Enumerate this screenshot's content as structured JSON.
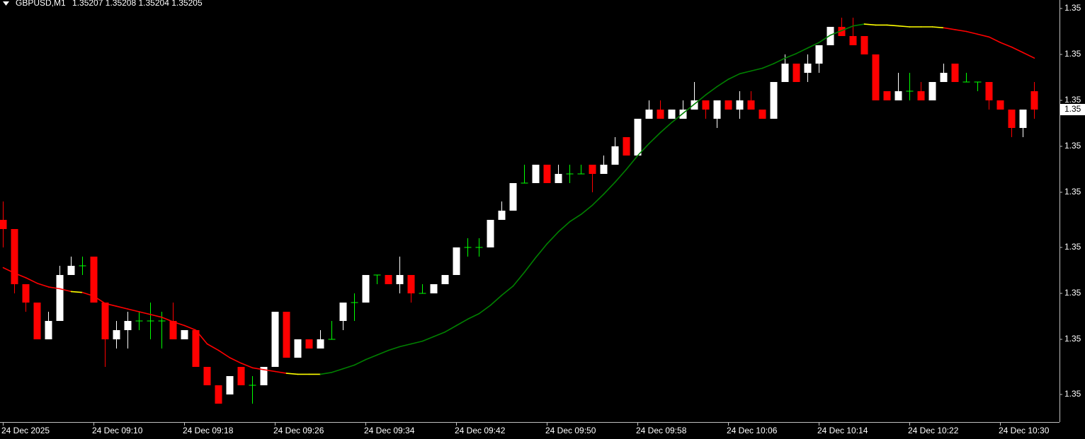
{
  "chart_data": {
    "type": "candlestick",
    "symbol": "GBPUSD,M1",
    "categories": [
      "24 Dec 2025",
      null,
      null,
      null,
      null,
      null,
      null,
      null,
      "24 Dec 09:10",
      null,
      null,
      null,
      null,
      null,
      null,
      null,
      "24 Dec 09:18",
      null,
      null,
      null,
      null,
      null,
      null,
      null,
      "24 Dec 09:26",
      null,
      null,
      null,
      null,
      null,
      null,
      null,
      "24 Dec 09:34",
      null,
      null,
      null,
      null,
      null,
      null,
      null,
      "24 Dec 09:42",
      null,
      null,
      null,
      null,
      null,
      null,
      null,
      "24 Dec 09:50",
      null,
      null,
      null,
      null,
      null,
      null,
      null,
      "24 Dec 09:58",
      null,
      null,
      null,
      null,
      null,
      null,
      null,
      "24 Dec 10:06",
      null,
      null,
      null,
      null,
      null,
      null,
      null,
      "24 Dec 10:14",
      null,
      null,
      null,
      null,
      null,
      null,
      null,
      "24 Dec 10:22",
      null,
      null,
      null,
      null,
      null,
      null,
      null,
      "24 Dec 10:30",
      null,
      null,
      null
    ],
    "open": [
      1.35193,
      1.35192,
      1.35186,
      1.35184,
      1.3518,
      1.35182,
      1.35187,
      1.35188,
      1.35189,
      1.35184,
      1.3518,
      1.35181,
      1.35182,
      1.35182,
      1.35182,
      1.35182,
      1.3518,
      1.35181,
      1.35177,
      1.35175,
      1.35174,
      1.35177,
      1.35175,
      1.35175,
      1.35177,
      1.35183,
      1.35178,
      1.3518,
      1.35179,
      1.3518,
      1.35182,
      1.35184,
      1.35184,
      1.35187,
      1.35187,
      1.35186,
      1.35187,
      1.35185,
      1.35185,
      1.35186,
      1.35187,
      1.3519,
      1.3519,
      1.3519,
      1.35193,
      1.35194,
      1.35197,
      1.35197,
      1.35199,
      1.35197,
      1.35198,
      1.35198,
      1.35199,
      1.35198,
      1.35199,
      1.35202,
      1.352,
      1.35204,
      1.35205,
      1.35204,
      1.35204,
      1.35205,
      1.35206,
      1.35204,
      1.35206,
      1.35205,
      1.35206,
      1.35205,
      1.35204,
      1.35208,
      1.3521,
      1.35209,
      1.3521,
      1.35212,
      1.35214,
      1.35213,
      1.35213,
      1.35211,
      1.35207,
      1.35206,
      1.35207,
      1.35207,
      1.35206,
      1.35208,
      1.3521,
      1.35208,
      1.35208,
      1.35208,
      1.35206,
      1.35205,
      1.35203,
      1.35207
    ],
    "high": [
      1.35195,
      1.35192,
      1.35186,
      1.35184,
      1.35183,
      1.35188,
      1.35189,
      1.35189,
      1.35189,
      1.35184,
      1.35182,
      1.35183,
      1.35183,
      1.35184,
      1.35183,
      1.35184,
      1.35181,
      1.35181,
      1.35177,
      1.35175,
      1.35176,
      1.35177,
      1.35176,
      1.35177,
      1.35183,
      1.35183,
      1.3518,
      1.3518,
      1.35181,
      1.35182,
      1.35184,
      1.35185,
      1.35187,
      1.35187,
      1.35187,
      1.35189,
      1.35187,
      1.35186,
      1.35186,
      1.35187,
      1.3519,
      1.35191,
      1.35191,
      1.35193,
      1.35195,
      1.35197,
      1.35199,
      1.35199,
      1.35199,
      1.35199,
      1.35199,
      1.35199,
      1.35199,
      1.352,
      1.35202,
      1.35202,
      1.35204,
      1.35206,
      1.35206,
      1.35205,
      1.35206,
      1.35208,
      1.35206,
      1.35206,
      1.35206,
      1.35207,
      1.35207,
      1.35205,
      1.35208,
      1.35211,
      1.3521,
      1.35211,
      1.35212,
      1.35214,
      1.35215,
      1.35215,
      1.35213,
      1.35211,
      1.35207,
      1.35209,
      1.35209,
      1.35208,
      1.35208,
      1.3521,
      1.3521,
      1.35209,
      1.35208,
      1.35208,
      1.35206,
      1.35205,
      1.35205,
      1.35208
    ],
    "low": [
      1.3519,
      1.35185,
      1.35183,
      1.3518,
      1.3518,
      1.35182,
      1.35187,
      1.35187,
      1.35184,
      1.35177,
      1.35179,
      1.35179,
      1.35181,
      1.3518,
      1.35179,
      1.3518,
      1.3518,
      1.35177,
      1.35175,
      1.35173,
      1.35174,
      1.35175,
      1.35173,
      1.35175,
      1.35177,
      1.35178,
      1.35178,
      1.35179,
      1.35179,
      1.3518,
      1.35181,
      1.35182,
      1.35184,
      1.35186,
      1.35186,
      1.35185,
      1.35184,
      1.35185,
      1.35185,
      1.35186,
      1.35187,
      1.35189,
      1.35189,
      1.3519,
      1.35193,
      1.35194,
      1.35197,
      1.35197,
      1.35197,
      1.35197,
      1.35197,
      1.35198,
      1.35196,
      1.35198,
      1.35199,
      1.352,
      1.352,
      1.35204,
      1.35204,
      1.35204,
      1.35204,
      1.35205,
      1.35204,
      1.35203,
      1.35205,
      1.35204,
      1.35205,
      1.35204,
      1.35204,
      1.35208,
      1.35208,
      1.35208,
      1.35209,
      1.35212,
      1.35213,
      1.35212,
      1.35211,
      1.35206,
      1.35206,
      1.35206,
      1.35206,
      1.35206,
      1.35206,
      1.35208,
      1.35208,
      1.35208,
      1.35207,
      1.35205,
      1.35205,
      1.35202,
      1.35202,
      1.35204
    ],
    "close": [
      1.35192,
      1.35186,
      1.35184,
      1.3518,
      1.35182,
      1.35187,
      1.35188,
      1.35188,
      1.35184,
      1.3518,
      1.35181,
      1.35182,
      1.35182,
      1.35182,
      1.35182,
      1.3518,
      1.35181,
      1.35177,
      1.35175,
      1.35173,
      1.35176,
      1.35175,
      1.35175,
      1.35177,
      1.35183,
      1.35178,
      1.3518,
      1.35179,
      1.3518,
      1.3518,
      1.35184,
      1.35184,
      1.35187,
      1.35187,
      1.35186,
      1.35187,
      1.35185,
      1.35185,
      1.35186,
      1.35187,
      1.3519,
      1.3519,
      1.3519,
      1.35193,
      1.35194,
      1.35197,
      1.35197,
      1.35199,
      1.35197,
      1.35198,
      1.35198,
      1.35198,
      1.35198,
      1.35199,
      1.35201,
      1.352,
      1.35204,
      1.35205,
      1.35204,
      1.35205,
      1.35205,
      1.35206,
      1.35205,
      1.35206,
      1.35205,
      1.35206,
      1.35205,
      1.35204,
      1.35208,
      1.3521,
      1.35208,
      1.3521,
      1.35212,
      1.35214,
      1.35213,
      1.35212,
      1.35211,
      1.35206,
      1.35206,
      1.35207,
      1.35207,
      1.35206,
      1.35208,
      1.35209,
      1.35208,
      1.35208,
      1.35208,
      1.35206,
      1.35205,
      1.35203,
      1.35205,
      1.35205
    ],
    "ma": {
      "values": [
        1.351878,
        1.351872,
        1.351867,
        1.351861,
        1.351857,
        1.351855,
        1.351852,
        1.351851,
        1.351847,
        1.351839,
        1.351836,
        1.351833,
        1.35183,
        1.351827,
        1.351824,
        1.351819,
        1.351815,
        1.35181,
        1.351795,
        1.351788,
        1.35178,
        1.351774,
        1.351769,
        1.351767,
        1.351765,
        1.351763,
        1.351762,
        1.351762,
        1.351762,
        1.351764,
        1.351768,
        1.351772,
        1.351778,
        1.351783,
        1.351788,
        1.351792,
        1.351795,
        1.351798,
        1.351803,
        1.351808,
        1.351815,
        1.351822,
        1.351828,
        1.351837,
        1.351848,
        1.351858,
        1.351873,
        1.351889,
        1.351904,
        1.351917,
        1.351928,
        1.351936,
        1.351946,
        1.351958,
        1.351971,
        1.351985,
        1.352,
        1.352013,
        1.352025,
        1.352036,
        1.352046,
        1.352056,
        1.352066,
        1.352075,
        1.352083,
        1.352089,
        1.352092,
        1.352095,
        1.3521,
        1.352106,
        1.352111,
        1.352117,
        1.352123,
        1.352131,
        1.352136,
        1.352141,
        1.352143,
        1.352142,
        1.352142,
        1.352141,
        1.35214,
        1.35214,
        1.35214,
        1.352139,
        1.352137,
        1.352135,
        1.352132,
        1.352129,
        1.352123,
        1.352118,
        1.352112,
        1.352106
      ],
      "colors": {
        "up": "#008000",
        "down": "#ff0000",
        "flat": "#ffff00"
      }
    },
    "colors": {
      "bull": "#ffffff",
      "bear": "#ff0000",
      "doji": "#00ff00"
    },
    "last_price_label": "1.35",
    "ylim": [
      1.35171,
      1.35217
    ],
    "yticks": [
      {
        "value": 1.35216,
        "label": "1.35"
      },
      {
        "value": 1.35211,
        "label": "1.35"
      },
      {
        "value": 1.35206,
        "label": "1.35"
      },
      {
        "value": 1.35201,
        "label": "1.35"
      },
      {
        "value": 1.35196,
        "label": "1.35"
      },
      {
        "value": 1.3519,
        "label": "1.35"
      },
      {
        "value": 1.35185,
        "label": "1.35"
      },
      {
        "value": 1.3518,
        "label": "1.35"
      },
      {
        "value": 1.35174,
        "label": "1.35"
      }
    ]
  }
}
